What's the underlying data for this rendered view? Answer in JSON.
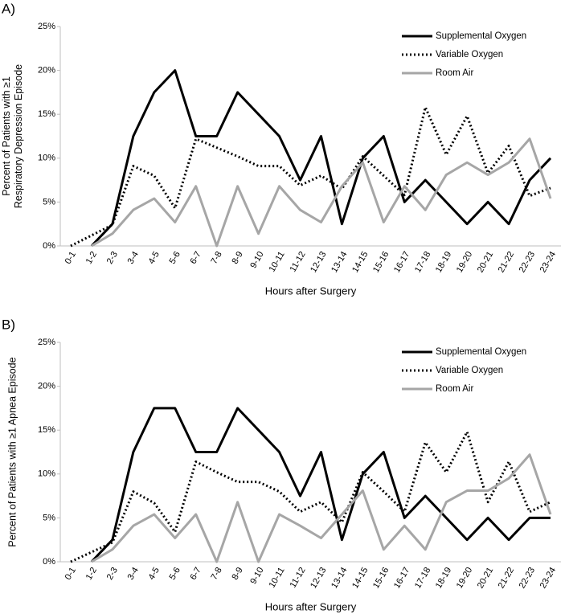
{
  "chart_data": [
    {
      "type": "line",
      "panel_label": "A)",
      "xlabel": "Hours after Surgery",
      "ylabel": [
        "Percent of Patients with ≥1",
        "Respiratory Depression Episode"
      ],
      "categories": [
        "0-1",
        "1-2",
        "2-3",
        "3-4",
        "4-5",
        "5-6",
        "6-7",
        "7-8",
        "8-9",
        "9-10",
        "10-11",
        "11-12",
        "12-13",
        "13-14",
        "14-15",
        "15-16",
        "16-17",
        "17-18",
        "18-19",
        "19-20",
        "20-21",
        "21-22",
        "22-23",
        "23-24"
      ],
      "ylim": [
        0,
        25
      ],
      "yticks": [
        {
          "value": 0,
          "label": "0%"
        },
        {
          "value": 5,
          "label": "5%"
        },
        {
          "value": 10,
          "label": "10%"
        },
        {
          "value": 15,
          "label": "15%"
        },
        {
          "value": 20,
          "label": "20%"
        },
        {
          "value": 25,
          "label": "25%"
        }
      ],
      "legend": "upper right",
      "series": [
        {
          "name": "Supplemental Oxygen",
          "color": "#000000",
          "style": "solid",
          "values": [
            null,
            0,
            2.5,
            12.5,
            17.5,
            20,
            12.5,
            12.5,
            17.5,
            15,
            12.5,
            7.5,
            12.5,
            2.5,
            10,
            12.5,
            5,
            7.5,
            5,
            2.5,
            5,
            2.5,
            7.5,
            10
          ]
        },
        {
          "name": "Variable Oxygen",
          "color": "#000000",
          "style": "dotted",
          "values": [
            0,
            1.2,
            2.4,
            9.1,
            8,
            4.3,
            12.2,
            11.2,
            10.2,
            9.1,
            9.1,
            6.9,
            8,
            6.5,
            10.2,
            8,
            5.8,
            15.8,
            10.4,
            14.8,
            8.3,
            11.4,
            5.7,
            6.6
          ]
        },
        {
          "name": "Room Air",
          "color": "#a6a6a6",
          "style": "solid",
          "values": [
            null,
            0,
            1.4,
            4.1,
            5.4,
            2.7,
            6.8,
            0,
            6.8,
            1.4,
            6.8,
            4.1,
            2.7,
            6.8,
            9.5,
            2.7,
            6.8,
            4.1,
            8.1,
            9.5,
            8.1,
            9.5,
            12.2,
            5.4
          ]
        }
      ]
    },
    {
      "type": "line",
      "panel_label": "B)",
      "xlabel": "Hours after Surgery",
      "ylabel": [
        "Percent of Patients with ≥1 Apnea Episode"
      ],
      "categories": [
        "0-1",
        "1-2",
        "2-3",
        "3-4",
        "4-5",
        "5-6",
        "6-7",
        "7-8",
        "8-9",
        "9-10",
        "10-11",
        "11-12",
        "12-13",
        "13-14",
        "14-15",
        "15-16",
        "16-17",
        "17-18",
        "18-19",
        "19-20",
        "20-21",
        "21-22",
        "22-23",
        "23-24"
      ],
      "ylim": [
        0,
        25
      ],
      "yticks": [
        {
          "value": 0,
          "label": "0%"
        },
        {
          "value": 5,
          "label": "5%"
        },
        {
          "value": 10,
          "label": "10%"
        },
        {
          "value": 15,
          "label": "15%"
        },
        {
          "value": 20,
          "label": "20%"
        },
        {
          "value": 25,
          "label": "25%"
        }
      ],
      "legend": "upper right",
      "series": [
        {
          "name": "Supplemental Oxygen",
          "color": "#000000",
          "style": "solid",
          "values": [
            null,
            0,
            2.5,
            12.5,
            17.5,
            17.5,
            12.5,
            12.5,
            17.5,
            15,
            12.5,
            7.5,
            12.5,
            2.5,
            10,
            12.5,
            5,
            7.5,
            5,
            2.5,
            5,
            2.5,
            5,
            5
          ]
        },
        {
          "name": "Variable Oxygen",
          "color": "#000000",
          "style": "dotted",
          "values": [
            0,
            1.1,
            2.2,
            8,
            6.7,
            3.4,
            11.4,
            10.2,
            9.1,
            9.1,
            8,
            5.7,
            6.8,
            4.5,
            10.2,
            8,
            5.7,
            13.6,
            10.2,
            14.8,
            6.8,
            11.4,
            5.7,
            6.8
          ]
        },
        {
          "name": "Room Air",
          "color": "#a6a6a6",
          "style": "solid",
          "values": [
            null,
            0,
            1.4,
            4.1,
            5.4,
            2.7,
            5.4,
            0,
            6.8,
            0,
            5.4,
            4.1,
            2.7,
            5.4,
            8.1,
            1.4,
            4.1,
            1.4,
            6.8,
            8.1,
            8.1,
            9.5,
            12.2,
            5.4
          ]
        }
      ]
    }
  ]
}
